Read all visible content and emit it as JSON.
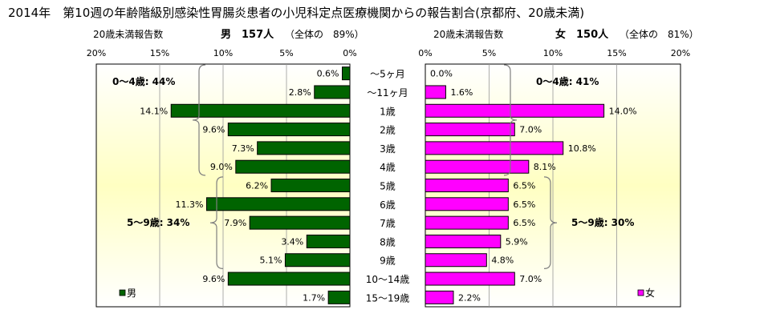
{
  "title": "2014年　第10週の年齢階級別感染性胃腸炎患者の小児科定点医療機関からの報告割合(京都府、20歳未満)",
  "chart_data": {
    "type": "bar",
    "orientation": "horizontal",
    "layout": "population-pyramid",
    "categories": [
      "～5ヶ月",
      "～11ヶ月",
      "1歳",
      "2歳",
      "3歳",
      "4歳",
      "5歳",
      "6歳",
      "7歳",
      "8歳",
      "9歳",
      "10～14歳",
      "15～19歳"
    ],
    "axis_max": 20,
    "ticks": [
      "20%",
      "15%",
      "10%",
      "5%",
      "0%"
    ],
    "ticks_right": [
      "0%",
      "5%",
      "10%",
      "15%",
      "20%"
    ],
    "grid": true,
    "colors": {
      "male": "#006400",
      "female": "#ff00ff",
      "bracket": "#7f7f7f"
    },
    "series": [
      {
        "name": "男",
        "side": "left",
        "header": {
          "label": "20歳未満報告数",
          "summary": "男　157人",
          "note": "（全体の　89%）"
        },
        "values": [
          0.6,
          2.8,
          14.1,
          9.6,
          7.3,
          9.0,
          6.2,
          11.3,
          7.9,
          3.4,
          5.1,
          9.6,
          1.7
        ],
        "labels": [
          "0.6%",
          "2.8%",
          "14.1%",
          "9.6%",
          "7.3%",
          "9.0%",
          "6.2%",
          "11.3%",
          "7.9%",
          "3.4%",
          "5.1%",
          "9.6%",
          "1.7%"
        ],
        "groups": [
          {
            "label": "0～4歳: 44%",
            "from": 0,
            "to": 5
          },
          {
            "label": "5～9歳: 34%",
            "from": 6,
            "to": 10
          }
        ]
      },
      {
        "name": "女",
        "side": "right",
        "header": {
          "label": "20歳未満報告数",
          "summary": "女　150人",
          "note": "（全体の　81%）"
        },
        "values": [
          0.0,
          1.6,
          14.0,
          7.0,
          10.8,
          8.1,
          6.5,
          6.5,
          6.5,
          5.9,
          4.8,
          7.0,
          2.2
        ],
        "labels": [
          "0.0%",
          "1.6%",
          "14.0%",
          "7.0%",
          "10.8%",
          "8.1%",
          "6.5%",
          "6.5%",
          "6.5%",
          "5.9%",
          "4.8%",
          "7.0%",
          "2.2%"
        ],
        "groups": [
          {
            "label": "0～4歳: 41%",
            "from": 0,
            "to": 5
          },
          {
            "label": "5～9歳: 30%",
            "from": 6,
            "to": 10
          }
        ]
      }
    ]
  }
}
